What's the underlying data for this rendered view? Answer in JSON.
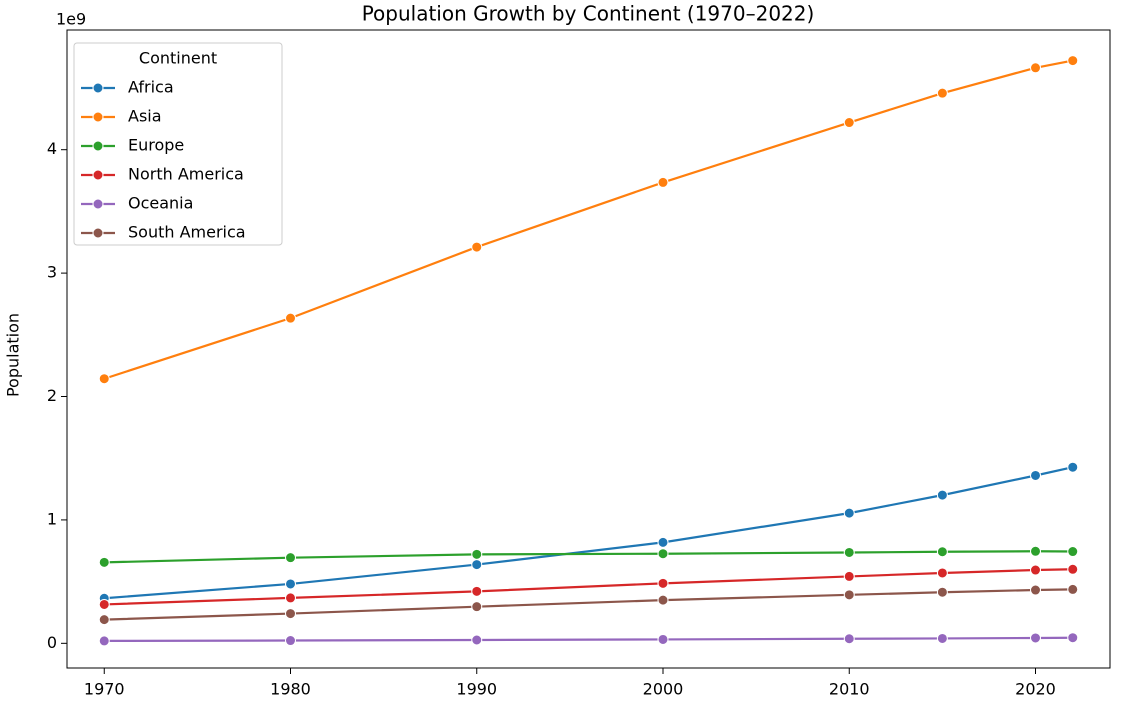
{
  "chart_data": {
    "type": "line",
    "title": "Population Growth by Continent (1970–2022)",
    "y_label": "Population",
    "y_offset_label": "1e9",
    "x": [
      1970,
      1980,
      1990,
      2000,
      2010,
      2015,
      2020,
      2022
    ],
    "series": [
      {
        "name": "Africa",
        "color": "#1f77b4",
        "values": [
          0.365,
          0.481,
          0.638,
          0.818,
          1.055,
          1.201,
          1.36,
          1.427
        ]
      },
      {
        "name": "Asia",
        "color": "#ff7f0e",
        "values": [
          2.144,
          2.635,
          3.211,
          3.735,
          4.22,
          4.458,
          4.664,
          4.722
        ]
      },
      {
        "name": "Europe",
        "color": "#2ca02c",
        "values": [
          0.656,
          0.694,
          0.721,
          0.726,
          0.736,
          0.742,
          0.746,
          0.744
        ]
      },
      {
        "name": "North America",
        "color": "#d62728",
        "values": [
          0.315,
          0.368,
          0.421,
          0.486,
          0.542,
          0.57,
          0.594,
          0.6
        ]
      },
      {
        "name": "Oceania",
        "color": "#9467bd",
        "values": [
          0.0197,
          0.0227,
          0.0269,
          0.0314,
          0.037,
          0.0395,
          0.0433,
          0.0452
        ]
      },
      {
        "name": "South America",
        "color": "#8c564b",
        "values": [
          0.192,
          0.241,
          0.297,
          0.35,
          0.393,
          0.414,
          0.432,
          0.437
        ]
      }
    ],
    "legend_title": "Continent",
    "legend": "upper left",
    "xlim": [
      1968,
      2024
    ],
    "xticks": [
      1970,
      1980,
      1990,
      2000,
      2010,
      2020
    ],
    "ylim": [
      -0.2,
      4.97
    ],
    "yticks": [
      0,
      1,
      2,
      3,
      4
    ],
    "grid": false
  }
}
